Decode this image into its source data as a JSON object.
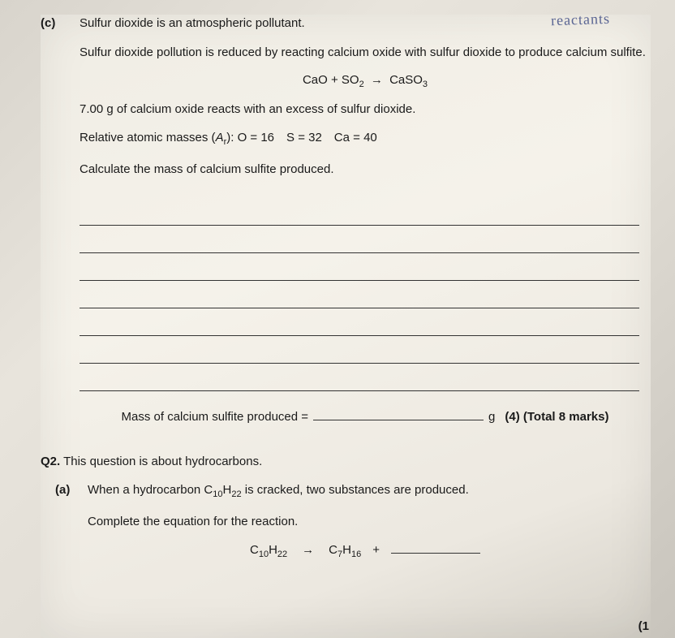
{
  "partC": {
    "label": "(c)",
    "line1": "Sulfur dioxide is an atmospheric pollutant.",
    "line2": "Sulfur dioxide pollution is reduced by reacting calcium oxide with sulfur dioxide to produce calcium sulfite.",
    "equation": {
      "lhs1": "CaO",
      "plus": "+",
      "lhs2": "SO",
      "lhs2sub": "2",
      "arrow": "→",
      "rhs": "CaSO",
      "rhssub": "3"
    },
    "line3": "7.00 g of calcium oxide reacts with an excess of sulfur dioxide.",
    "line4pre": "Relative atomic masses (",
    "line4ar": "A",
    "line4arsub": "r",
    "line4post": "): O = 16 S = 32 Ca = 40",
    "line5": "Calculate the mass of calcium sulfite produced.",
    "answerLabel": "Mass of calcium sulfite produced =",
    "unit": "g",
    "marks": "(4) (Total 8 marks)",
    "blankLineCount": 7
  },
  "q2": {
    "header": "Q2.",
    "intro": "This question is about hydrocarbons.",
    "partA": {
      "label": "(a)",
      "line1a": "When a hydrocarbon C",
      "sub1": "10",
      "mid1": "H",
      "sub2": "22",
      "line1b": " is cracked, two substances are produced.",
      "line2": "Complete the equation for the reaction.",
      "eq": {
        "a": "C",
        "asub1": "10",
        "amid": "H",
        "asub2": "22",
        "arrow": "→",
        "b": "C",
        "bsub1": "7",
        "bmid": "H",
        "bsub2": "16",
        "plus": "+"
      },
      "mark": "(1"
    }
  },
  "handwriting": "reactants"
}
